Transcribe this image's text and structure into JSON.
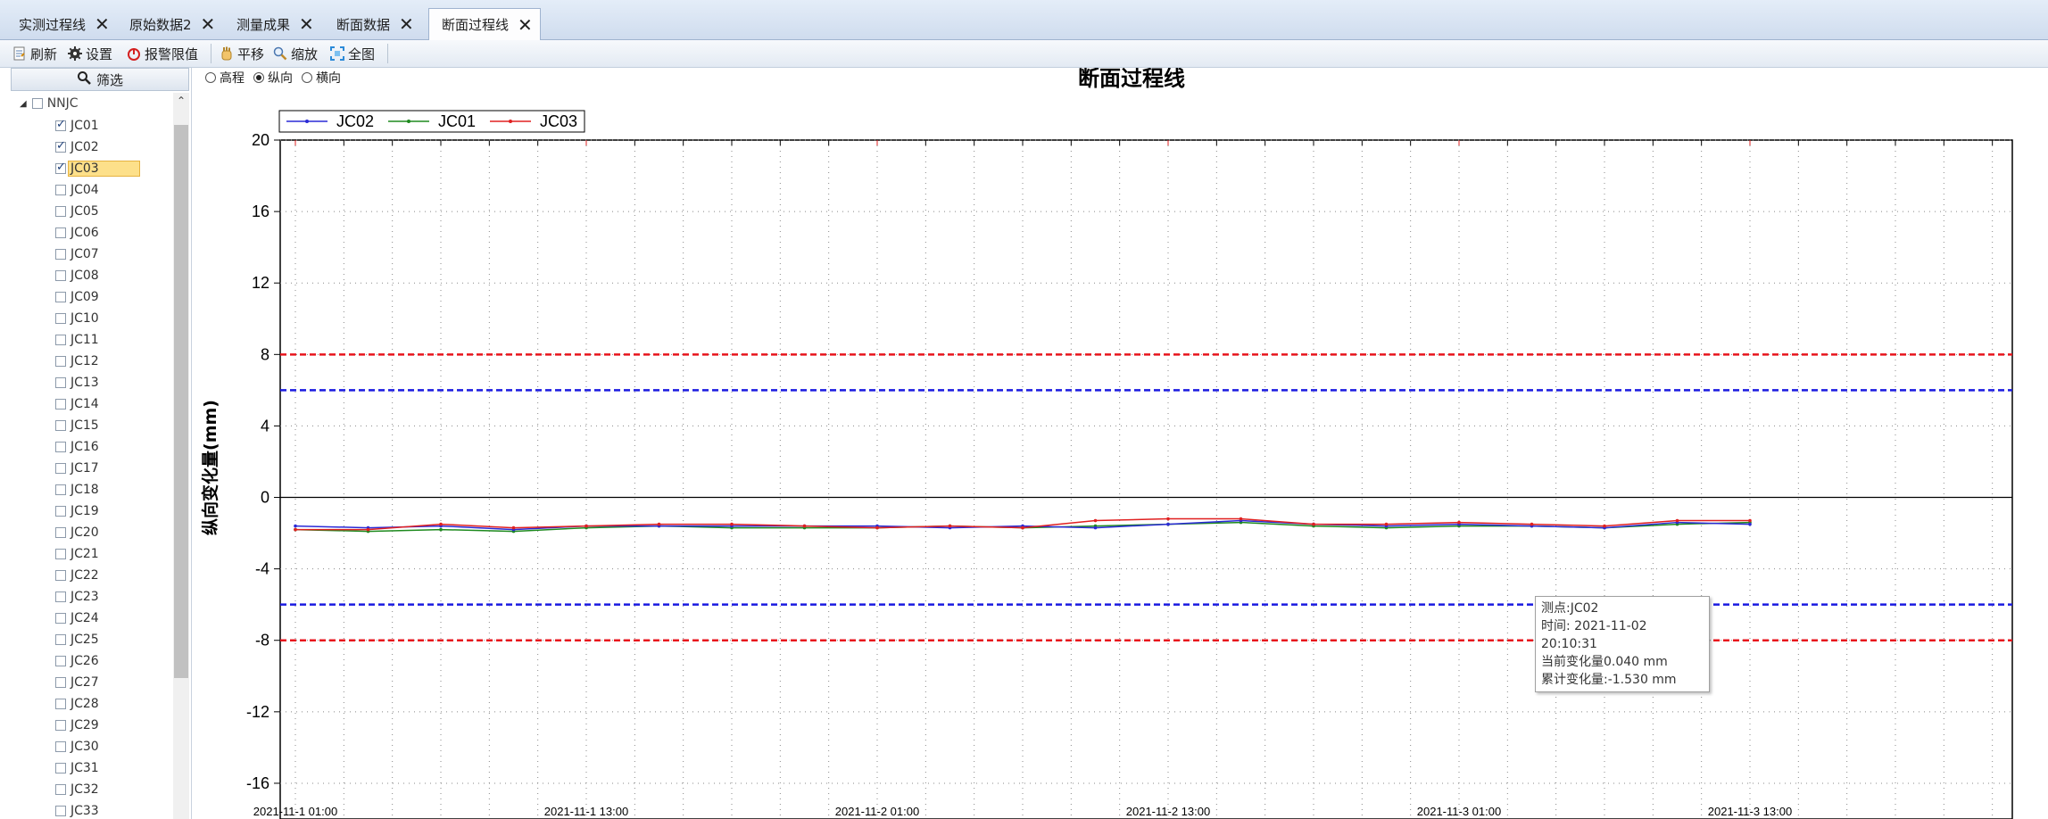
{
  "tabs": [
    {
      "label": "实测过程线",
      "active": false
    },
    {
      "label": "原始数据2",
      "active": false
    },
    {
      "label": "测量成果",
      "active": false
    },
    {
      "label": "断面数据",
      "active": false
    },
    {
      "label": "断面过程线",
      "active": true
    }
  ],
  "toolbar": {
    "refresh": "刷新",
    "settings": "设置",
    "alarm_limit": "报警限值",
    "pan": "平移",
    "zoom": "缩放",
    "full_view": "全图"
  },
  "filter_button": "筛选",
  "tree": {
    "root": "NNJC",
    "items": [
      {
        "label": "JC01",
        "checked": true
      },
      {
        "label": "JC02",
        "checked": true
      },
      {
        "label": "JC03",
        "checked": true,
        "selected": true
      },
      {
        "label": "JC04",
        "checked": false
      },
      {
        "label": "JC05",
        "checked": false
      },
      {
        "label": "JC06",
        "checked": false
      },
      {
        "label": "JC07",
        "checked": false
      },
      {
        "label": "JC08",
        "checked": false
      },
      {
        "label": "JC09",
        "checked": false
      },
      {
        "label": "JC10",
        "checked": false
      },
      {
        "label": "JC11",
        "checked": false
      },
      {
        "label": "JC12",
        "checked": false
      },
      {
        "label": "JC13",
        "checked": false
      },
      {
        "label": "JC14",
        "checked": false
      },
      {
        "label": "JC15",
        "checked": false
      },
      {
        "label": "JC16",
        "checked": false
      },
      {
        "label": "JC17",
        "checked": false
      },
      {
        "label": "JC18",
        "checked": false
      },
      {
        "label": "JC19",
        "checked": false
      },
      {
        "label": "JC20",
        "checked": false
      },
      {
        "label": "JC21",
        "checked": false
      },
      {
        "label": "JC22",
        "checked": false
      },
      {
        "label": "JC23",
        "checked": false
      },
      {
        "label": "JC24",
        "checked": false
      },
      {
        "label": "JC25",
        "checked": false
      },
      {
        "label": "JC26",
        "checked": false
      },
      {
        "label": "JC27",
        "checked": false
      },
      {
        "label": "JC28",
        "checked": false
      },
      {
        "label": "JC29",
        "checked": false
      },
      {
        "label": "JC30",
        "checked": false
      },
      {
        "label": "JC31",
        "checked": false
      },
      {
        "label": "JC32",
        "checked": false
      },
      {
        "label": "JC33",
        "checked": false
      }
    ]
  },
  "view_options": [
    {
      "label": "高程",
      "selected": false
    },
    {
      "label": "纵向",
      "selected": true
    },
    {
      "label": "横向",
      "selected": false
    }
  ],
  "tooltip": {
    "point": "测点:JC02",
    "time": "时间: 2021-11-02 20:10:31",
    "current": "当前变化量0.040 mm",
    "cumulative": "累计变化量:-1.530 mm"
  },
  "chart_data": {
    "type": "line",
    "title": "断面过程线",
    "xlabel": "",
    "ylabel": "纵向变化量(mm)",
    "ylim": [
      -18,
      20
    ],
    "yticks": [
      20,
      16,
      12,
      8,
      4,
      0,
      -4,
      -8,
      -12,
      -16
    ],
    "x_tick_labels": [
      "2021-11-1 01:00",
      "2021-11-1 13:00",
      "2021-11-2 01:00",
      "2021-11-2 13:00",
      "2021-11-3 01:00",
      "2021-11-3 13:00"
    ],
    "grid": true,
    "legend": "top-left",
    "threshold_lines": [
      {
        "value": 8,
        "color": "#e8141c",
        "style": "dashed"
      },
      {
        "value": 6,
        "color": "#1a1ae0",
        "style": "dashed"
      },
      {
        "value": -6,
        "color": "#1a1ae0",
        "style": "dashed"
      },
      {
        "value": -8,
        "color": "#e8141c",
        "style": "dashed"
      }
    ],
    "x_hours": [
      0,
      3,
      6,
      9,
      12,
      15,
      18,
      21,
      24,
      27,
      30,
      33,
      36,
      39,
      42,
      45,
      48,
      51,
      54,
      57,
      60
    ],
    "series": [
      {
        "name": "JC02",
        "color": "#2a2ad6",
        "values": [
          -1.6,
          -1.7,
          -1.6,
          -1.8,
          -1.6,
          -1.6,
          -1.6,
          -1.6,
          -1.6,
          -1.7,
          -1.6,
          -1.7,
          -1.5,
          -1.3,
          -1.5,
          -1.6,
          -1.5,
          -1.6,
          -1.7,
          -1.4,
          -1.5
        ]
      },
      {
        "name": "JC01",
        "color": "#1e8a1e",
        "values": [
          -1.8,
          -1.9,
          -1.8,
          -1.9,
          -1.7,
          -1.6,
          -1.7,
          -1.7,
          -1.7,
          -1.6,
          -1.7,
          -1.6,
          -1.5,
          -1.4,
          -1.6,
          -1.7,
          -1.6,
          -1.6,
          -1.7,
          -1.5,
          -1.4
        ]
      },
      {
        "name": "JC03",
        "color": "#e02020",
        "values": [
          -1.8,
          -1.8,
          -1.5,
          -1.7,
          -1.6,
          -1.5,
          -1.5,
          -1.6,
          -1.7,
          -1.6,
          -1.7,
          -1.3,
          -1.2,
          -1.2,
          -1.5,
          -1.5,
          -1.4,
          -1.5,
          -1.6,
          -1.3,
          -1.3
        ]
      }
    ]
  }
}
